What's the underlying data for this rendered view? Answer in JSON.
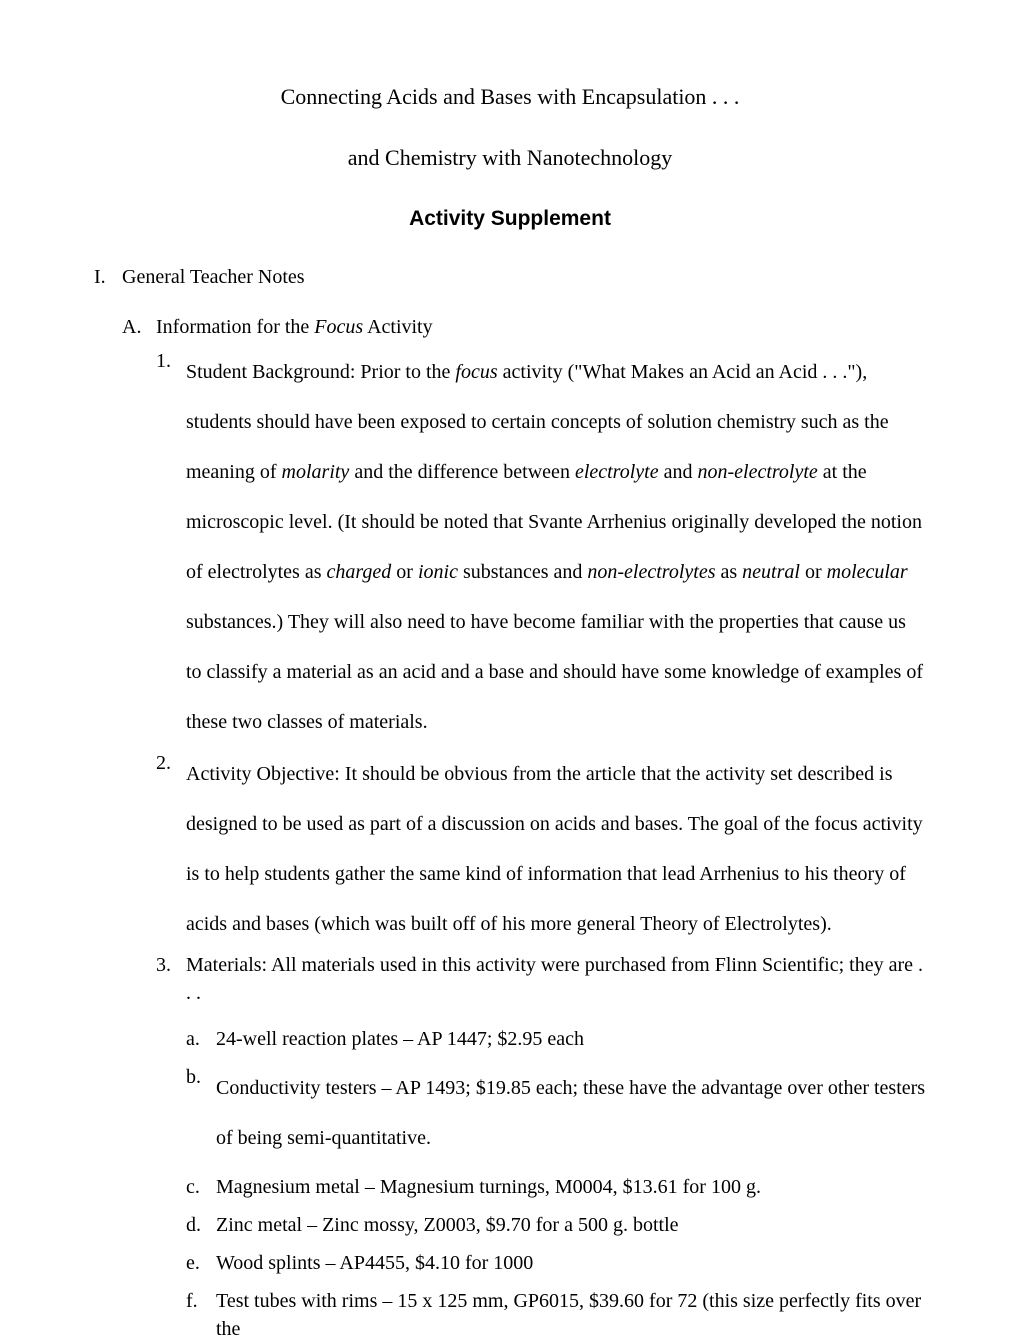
{
  "title": {
    "line1": "Connecting Acids and Bases with Encapsulation . . .",
    "line2": "and Chemistry with Nanotechnology"
  },
  "supplement": "Activity Supplement",
  "section": {
    "roman": "I.",
    "heading": "General Teacher Notes",
    "sub": {
      "letter": "A.",
      "heading_pre": "Information for the ",
      "heading_ital": "Focus",
      "heading_post": " Activity",
      "items": [
        {
          "num": "1.",
          "parts": [
            "Student Background:  Prior to the ",
            "focus",
            " activity (\"What Makes an Acid an Acid . . .\"), students should have been exposed to certain concepts of solution chemistry such as the meaning of ",
            "molarity",
            " and the difference between ",
            "electrolyte",
            " and ",
            "non-electrolyte",
            " at the microscopic level. (It should be noted that Svante Arrhenius originally developed the notion of electrolytes as ",
            "charged",
            " or ",
            "ionic",
            " substances and ",
            "non-electrolytes",
            " as ",
            "neutral",
            " or ",
            "molecular",
            " substances.)  They will also need to have become familiar with the properties that cause us to classify a material as an acid and a base and should have some knowledge of examples of these two classes of materials."
          ]
        },
        {
          "num": "2.",
          "text": "Activity Objective:  It should be obvious from the article that the activity set described is designed to be used as part of a discussion on acids and bases.  The goal of the focus activity is to help students gather the same kind of information that lead Arrhenius to his theory of acids and bases (which was built off of his more general Theory of Electrolytes)."
        },
        {
          "num": "3.",
          "text": "Materials:  All materials used in this activity were purchased from Flinn Scientific; they are . . .",
          "sub": [
            {
              "l": "a.",
              "t": "24-well reaction plates – AP 1447; $2.95 each"
            },
            {
              "l": "b.",
              "t": "Conductivity testers – AP 1493; $19.85 each; these have the advantage over other testers of being semi-quantitative."
            },
            {
              "l": "c.",
              "t": "Magnesium metal – Magnesium turnings, M0004, $13.61 for 100 g."
            },
            {
              "l": "d.",
              "t": "Zinc metal – Zinc mossy, Z0003, $9.70 for a 500 g. bottle"
            },
            {
              "l": "e.",
              "t": "Wood splints – AP4455, $4.10 for 1000"
            },
            {
              "l": "f.",
              "t": "Test tubes with rims – 15 x 125 mm, GP6015, $39.60 for 72 (this size perfectly fits over the"
            }
          ]
        }
      ]
    }
  }
}
